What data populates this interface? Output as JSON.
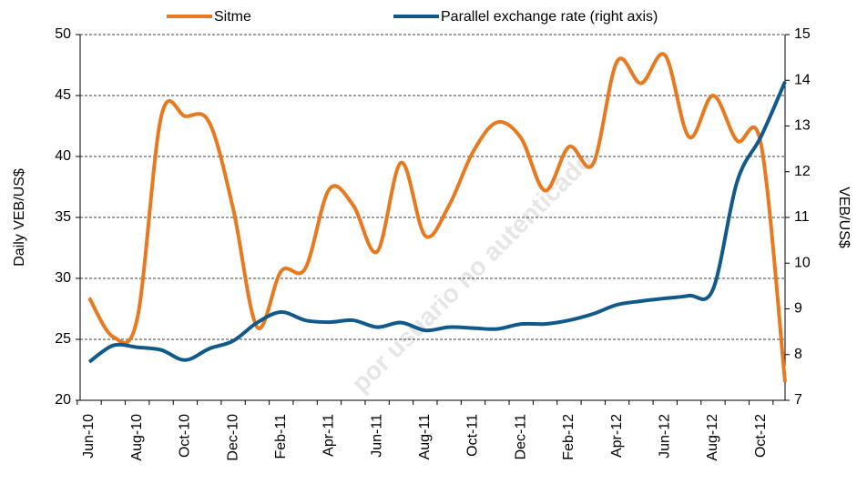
{
  "chart_data": {
    "type": "line",
    "y_label": "Daily VEB/US$",
    "y2_label": "VEB/US$",
    "watermark": "por usuario no autenticado",
    "categories": [
      "Jun-10",
      null,
      "Aug-10",
      null,
      "Oct-10",
      null,
      "Dec-10",
      null,
      "Feb-11",
      null,
      "Apr-11",
      null,
      "Jun-11",
      null,
      "Aug-11",
      null,
      "Oct-11",
      null,
      "Dec-11",
      null,
      "Feb-12",
      null,
      "Apr-12",
      null,
      "Jun-12",
      null,
      "Aug-12",
      null,
      "Oct-12",
      null
    ],
    "series": [
      {
        "name": "Sitme",
        "color": "#e8791e",
        "values": [
          28.4,
          25.2,
          26.7,
          43.3,
          43.3,
          42.8,
          35.7,
          26,
          30.6,
          30.8,
          37.3,
          36,
          32.2,
          39.5,
          33.5,
          36,
          40.4,
          42.8,
          41.5,
          37.2,
          40.8,
          39.4,
          47.8,
          46,
          48.3,
          41.6,
          45,
          41.3,
          41,
          21.5
        ]
      },
      {
        "name": "Parallel exchange rate (right axis)",
        "color": "#0f5a8a",
        "axis": "y2",
        "values": [
          7.84,
          8.2,
          8.16,
          8.1,
          7.88,
          8.13,
          8.3,
          8.7,
          8.93,
          8.75,
          8.71,
          8.75,
          8.6,
          8.7,
          8.53,
          8.6,
          8.58,
          8.56,
          8.67,
          8.67,
          8.75,
          8.89,
          9.09,
          9.17,
          9.23,
          9.29,
          9.43,
          11.78,
          12.77,
          13.97
        ]
      }
    ],
    "ylim": [
      20,
      50
    ],
    "yticks": [
      20,
      25,
      30,
      35,
      40,
      45,
      50
    ],
    "y2lim": [
      7,
      15
    ],
    "y2ticks": [
      7,
      8,
      9,
      10,
      11,
      12,
      13,
      14,
      15
    ],
    "grid": true,
    "legend": "top"
  }
}
